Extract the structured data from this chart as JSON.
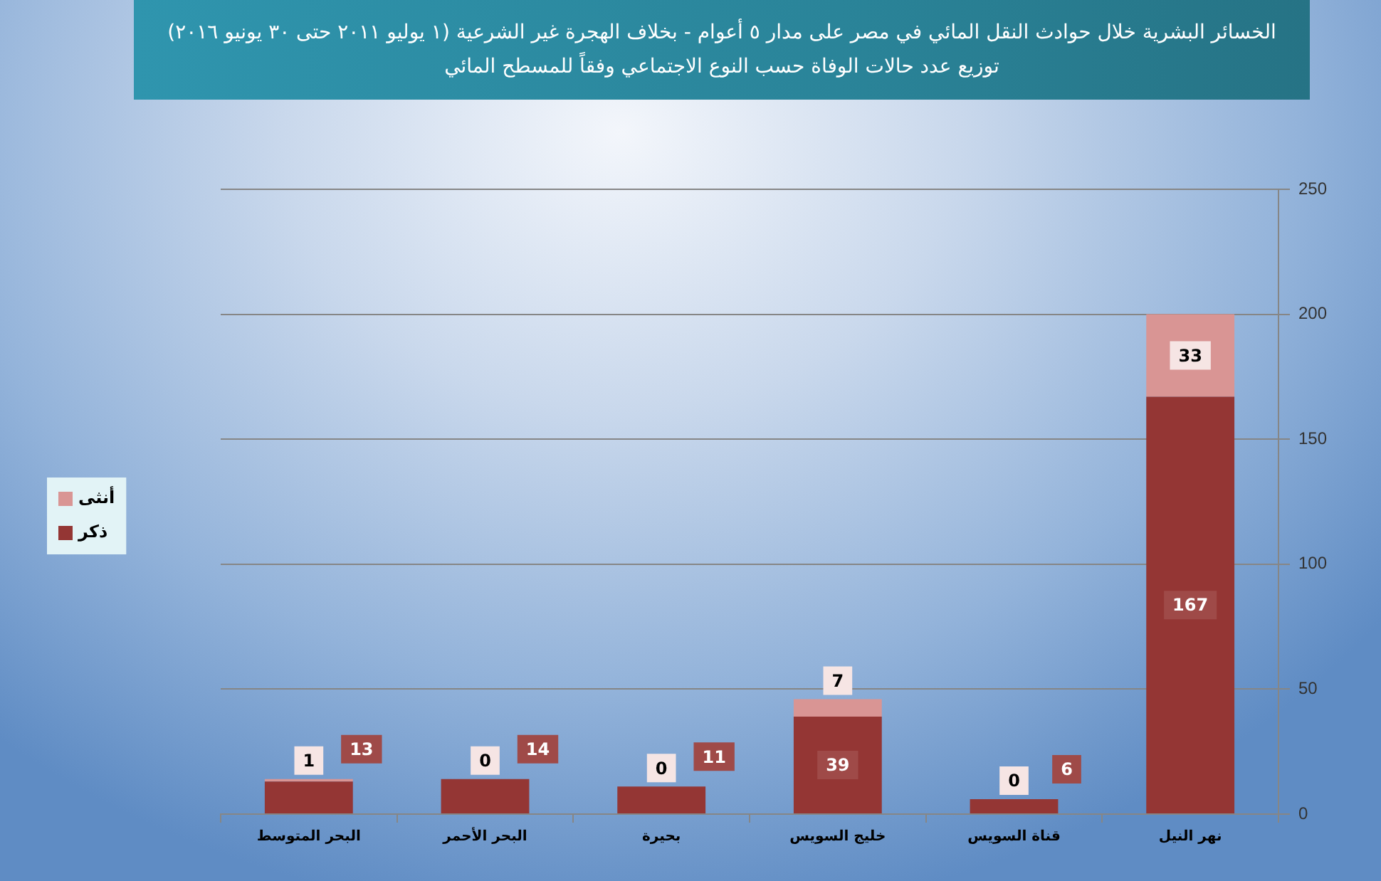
{
  "chart_data": {
    "type": "bar",
    "title": "الخسائر البشرية خلال حوادث النقل المائي في مصر على مدار ٥ أعوام - بخلاف الهجرة غير الشرعية (١ يوليو ٢٠١١ حتى ٣٠ يونيو ٢٠١٦)",
    "subtitle": "توزيع عدد حالات الوفاة حسب النوع الاجتماعي وفقاً للمسطح المائي",
    "categories": [
      "البحر المتوسط",
      "البحر الأحمر",
      "بحيرة",
      "خليج السويس",
      "قناة السويس",
      "نهر النيل"
    ],
    "series": [
      {
        "name": "ذكر",
        "color": "#943634",
        "values": [
          13,
          14,
          11,
          39,
          6,
          167
        ]
      },
      {
        "name": "أنثى",
        "color": "#d99594",
        "values": [
          1,
          0,
          0,
          7,
          0,
          33
        ]
      }
    ],
    "stacked": true,
    "ylim": [
      0,
      250
    ],
    "yticks": [
      0,
      50,
      100,
      150,
      200,
      250
    ],
    "grid": "y",
    "legend": "left",
    "data_labels": true
  }
}
